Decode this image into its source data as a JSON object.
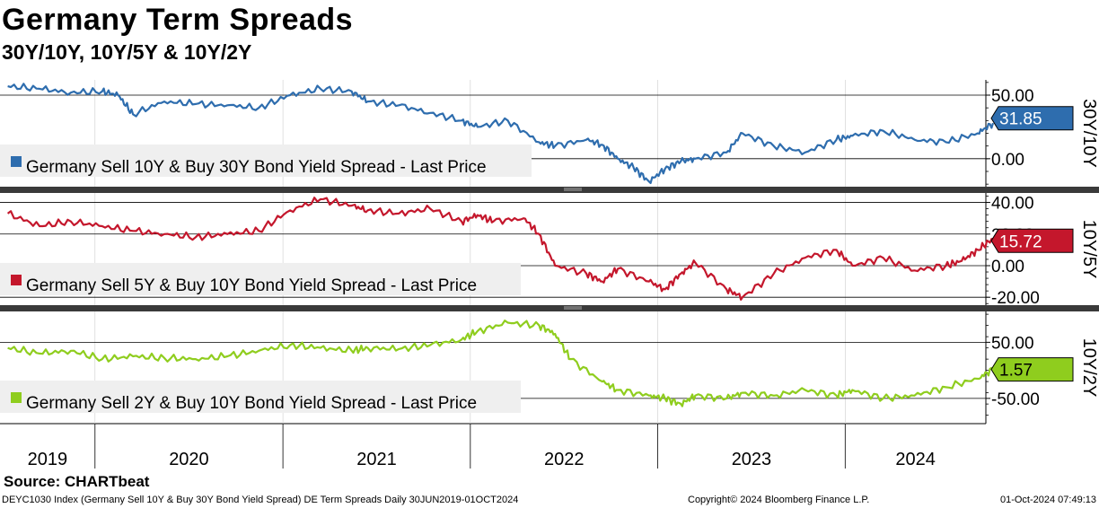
{
  "header": {
    "title": "Germany Term Spreads",
    "subtitle": "30Y/10Y, 10Y/5Y & 10Y/2Y"
  },
  "footer": {
    "source": "Source: CHARTbeat",
    "description": "DEYC1030 Index (Germany Sell 10Y & Buy 30Y Bond Yield Spread) DE Term Spreads  Daily 30JUN2019-01OCT2024",
    "copyright": "Copyright© 2024 Bloomberg Finance L.P.",
    "timestamp": "01-Oct-2024 07:49:13"
  },
  "chart_data": [
    {
      "type": "line",
      "panel_label": "30Y/10Y",
      "legend": "Germany Sell 10Y & Buy 30Y Bond Yield Spread - Last Price",
      "color": "#2e6dae",
      "last_value": 31.85,
      "last_value_label": "31.85",
      "yticks": [
        0,
        50
      ],
      "ytick_labels": [
        "0.00",
        "50.00"
      ],
      "ylim": [
        -22,
        62
      ],
      "x": [
        "2019-07",
        "2019-09",
        "2019-11",
        "2020-01",
        "2020-02",
        "2020-03",
        "2020-05",
        "2020-07",
        "2020-09",
        "2020-11",
        "2021-01",
        "2021-03",
        "2021-05",
        "2021-06",
        "2021-08",
        "2021-10",
        "2021-12",
        "2022-01",
        "2022-03",
        "2022-05",
        "2022-06",
        "2022-08",
        "2022-09",
        "2022-10",
        "2022-11",
        "2022-12",
        "2023-01",
        "2023-02",
        "2023-03",
        "2023-05",
        "2023-06",
        "2023-08",
        "2023-10",
        "2023-12",
        "2024-01",
        "2024-03",
        "2024-05",
        "2024-07",
        "2024-09",
        "2024-10"
      ],
      "values": [
        57,
        55,
        52,
        53,
        50,
        35,
        45,
        43,
        42,
        40,
        50,
        55,
        53,
        45,
        42,
        36,
        30,
        25,
        30,
        13,
        10,
        15,
        11,
        0,
        -7,
        -18,
        -8,
        -2,
        0,
        5,
        20,
        10,
        5,
        15,
        18,
        22,
        15,
        13,
        20,
        28
      ]
    },
    {
      "type": "line",
      "panel_label": "10Y/5Y",
      "legend": "Germany Sell 5Y & Buy 10Y Bond Yield Spread - Last Price",
      "color": "#c4172c",
      "last_value": 15.72,
      "last_value_label": "15.72",
      "yticks": [
        -20,
        0,
        20,
        40
      ],
      "ytick_labels": [
        "-20.00",
        "0.00",
        "20.00",
        "40.00"
      ],
      "ylim": [
        -25,
        46
      ],
      "x": [
        "2019-07",
        "2019-09",
        "2019-11",
        "2020-01",
        "2020-03",
        "2020-05",
        "2020-07",
        "2020-09",
        "2020-11",
        "2021-01",
        "2021-03",
        "2021-05",
        "2021-06",
        "2021-08",
        "2021-10",
        "2021-12",
        "2022-01",
        "2022-02",
        "2022-04",
        "2022-05",
        "2022-06",
        "2022-08",
        "2022-09",
        "2022-10",
        "2022-12",
        "2023-01",
        "2023-02",
        "2023-03",
        "2023-05",
        "2023-06",
        "2023-08",
        "2023-10",
        "2023-12",
        "2024-01",
        "2024-03",
        "2024-05",
        "2024-07",
        "2024-08",
        "2024-09",
        "2024-10"
      ],
      "values": [
        33,
        25,
        28,
        25,
        22,
        20,
        18,
        20,
        22,
        35,
        42,
        38,
        35,
        33,
        36,
        28,
        32,
        28,
        30,
        20,
        0,
        -5,
        -10,
        -2,
        -10,
        -15,
        -5,
        2,
        -15,
        -20,
        -5,
        5,
        10,
        0,
        5,
        -3,
        0,
        3,
        10,
        17
      ]
    },
    {
      "type": "line",
      "panel_label": "10Y/2Y",
      "legend": "Germany Sell 2Y & Buy 10Y Bond Yield Spread - Last Price",
      "color": "#8fcd1e",
      "last_value": 1.57,
      "last_value_label": "1.57",
      "yticks": [
        -50,
        50
      ],
      "ytick_labels": [
        "-50.00",
        "50.00"
      ],
      "ylim": [
        -95,
        105
      ],
      "x": [
        "2019-07",
        "2019-09",
        "2019-11",
        "2020-01",
        "2020-03",
        "2020-05",
        "2020-07",
        "2020-09",
        "2020-11",
        "2021-01",
        "2021-03",
        "2021-05",
        "2021-06",
        "2021-08",
        "2021-10",
        "2021-12",
        "2022-01",
        "2022-03",
        "2022-05",
        "2022-06",
        "2022-07",
        "2022-09",
        "2022-10",
        "2022-12",
        "2023-01",
        "2023-02",
        "2023-03",
        "2023-05",
        "2023-06",
        "2023-08",
        "2023-10",
        "2023-12",
        "2024-01",
        "2024-03",
        "2024-05",
        "2024-07",
        "2024-09",
        "2024-10"
      ],
      "values": [
        40,
        30,
        35,
        20,
        25,
        22,
        20,
        25,
        35,
        45,
        40,
        35,
        40,
        38,
        45,
        55,
        70,
        85,
        80,
        65,
        20,
        -20,
        -35,
        -45,
        -50,
        -60,
        -45,
        -50,
        -40,
        -45,
        -35,
        -45,
        -35,
        -50,
        -45,
        -30,
        -15,
        2
      ]
    }
  ],
  "xaxis": {
    "ticks": [
      "2019",
      "2020",
      "2021",
      "2022",
      "2023",
      "2024"
    ],
    "range": [
      "2019-06-30",
      "2024-10-01"
    ]
  }
}
